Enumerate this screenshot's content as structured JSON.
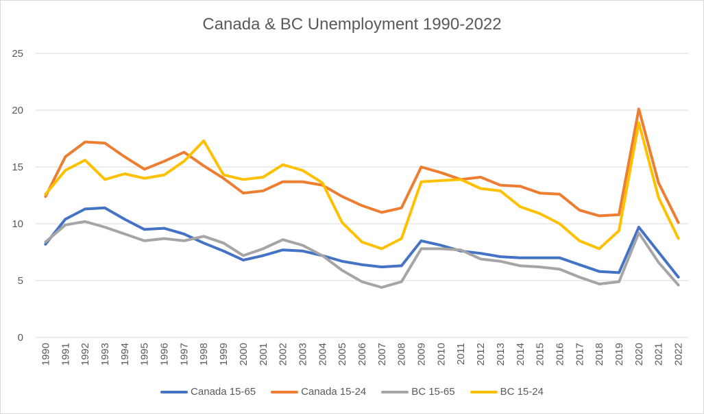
{
  "chart_data": {
    "type": "line",
    "title": "Canada & BC Unemployment 1990-2022",
    "xlabel": "",
    "ylabel": "",
    "x": [
      "1990",
      "1991",
      "1992",
      "1993",
      "1994",
      "1995",
      "1996",
      "1997",
      "1998",
      "1999",
      "2000",
      "2001",
      "2002",
      "2003",
      "2004",
      "2005",
      "2006",
      "2007",
      "2008",
      "2009",
      "2010",
      "2011",
      "2012",
      "2013",
      "2014",
      "2015",
      "2016",
      "2017",
      "2018",
      "2019",
      "2020",
      "2021",
      "2022"
    ],
    "ylim": [
      0,
      25
    ],
    "yticks": [
      0,
      5,
      10,
      15,
      20,
      25
    ],
    "grid": true,
    "legend_position": "bottom",
    "series": [
      {
        "name": "Canada 15-65",
        "color": "#4472C4",
        "values": [
          8.2,
          10.4,
          11.3,
          11.4,
          10.4,
          9.5,
          9.6,
          9.1,
          8.3,
          7.6,
          6.8,
          7.2,
          7.7,
          7.6,
          7.2,
          6.7,
          6.4,
          6.2,
          6.3,
          8.5,
          8.1,
          7.6,
          7.4,
          7.1,
          7.0,
          7.0,
          7.0,
          6.4,
          5.8,
          5.7,
          9.7,
          7.5,
          5.3
        ]
      },
      {
        "name": "Canada 15-24",
        "color": "#ED7D31",
        "values": [
          12.4,
          15.9,
          17.2,
          17.1,
          15.9,
          14.8,
          15.5,
          16.3,
          15.1,
          14.0,
          12.7,
          12.9,
          13.7,
          13.7,
          13.4,
          12.4,
          11.6,
          11.0,
          11.4,
          15.0,
          14.5,
          13.9,
          14.1,
          13.4,
          13.3,
          12.7,
          12.6,
          11.2,
          10.7,
          10.8,
          20.1,
          13.6,
          10.1
        ]
      },
      {
        "name": "BC 15-65",
        "color": "#A5A5A5",
        "values": [
          8.4,
          9.9,
          10.2,
          9.7,
          9.1,
          8.5,
          8.7,
          8.5,
          8.9,
          8.3,
          7.2,
          7.8,
          8.6,
          8.1,
          7.2,
          5.9,
          4.9,
          4.4,
          4.9,
          7.8,
          7.8,
          7.7,
          6.9,
          6.7,
          6.3,
          6.2,
          6.0,
          5.3,
          4.7,
          4.9,
          9.2,
          6.6,
          4.6
        ]
      },
      {
        "name": "BC 15-24",
        "color": "#FFC000",
        "values": [
          12.6,
          14.7,
          15.6,
          13.9,
          14.4,
          14.0,
          14.3,
          15.5,
          17.3,
          14.3,
          13.9,
          14.1,
          15.2,
          14.7,
          13.6,
          10.1,
          8.4,
          7.8,
          8.7,
          13.7,
          13.8,
          13.9,
          13.1,
          12.9,
          11.5,
          10.9,
          10.0,
          8.5,
          7.8,
          9.4,
          18.9,
          12.3,
          8.7
        ]
      }
    ]
  }
}
